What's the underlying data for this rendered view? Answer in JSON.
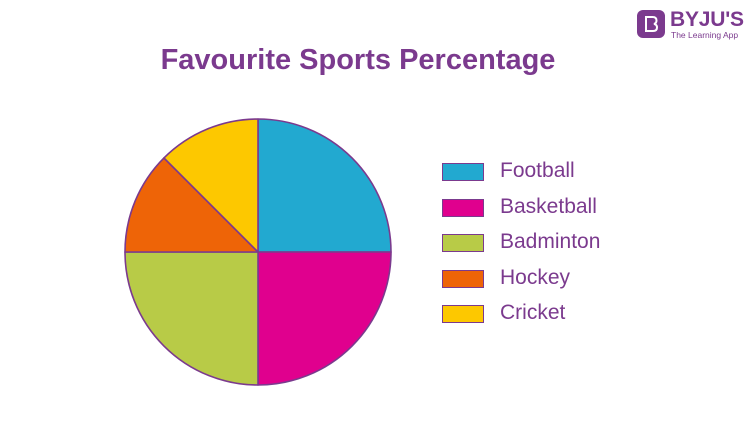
{
  "brand": {
    "name": "BYJU'S",
    "tagline": "The Learning App",
    "color": "#7b3a8e"
  },
  "chart_data": {
    "type": "pie",
    "title": "Favourite Sports Percentage",
    "legend": "right",
    "slices": [
      {
        "label": "Football",
        "value": 25,
        "color": "#22a9d0"
      },
      {
        "label": "Basketball",
        "value": 25,
        "color": "#e0008e"
      },
      {
        "label": "Badminton",
        "value": 25,
        "color": "#b8cb47"
      },
      {
        "label": "Hockey",
        "value": 12.5,
        "color": "#ee6407"
      },
      {
        "label": "Cricket",
        "value": 12.5,
        "color": "#fdc800"
      }
    ]
  }
}
